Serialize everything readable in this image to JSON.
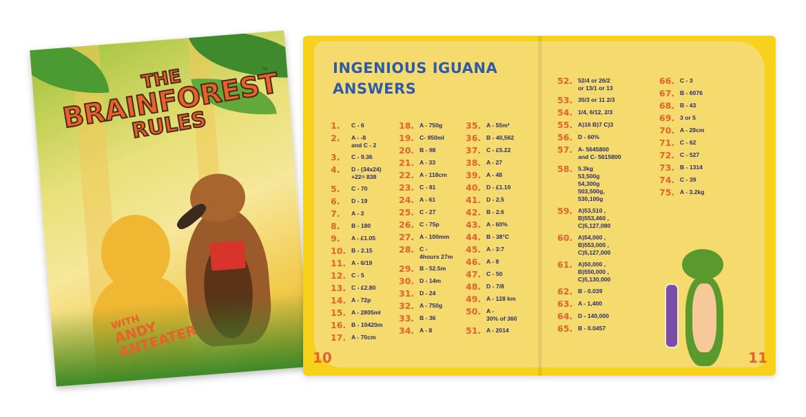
{
  "cover": {
    "title_line1": "THE",
    "title_line2": "BRAINFOREST",
    "title_line3": "RULES",
    "trademark": "™",
    "subtitle_line1": "WITH",
    "subtitle_line2": "ANDY",
    "subtitle_line3": "ANTEATER"
  },
  "spread": {
    "title_line1": "INGENIOUS IGUANA",
    "title_line2": "ANSWERS",
    "page_left": "10",
    "page_right": "11",
    "columns": [
      [
        [
          "1.",
          "C - 6"
        ],
        [
          "2.",
          "A - -8\nand C - 2"
        ],
        [
          "3.",
          "C - 9.36"
        ],
        [
          "4.",
          "D - (34x24)\n+22= 838"
        ],
        [
          "5.",
          "C - 70"
        ],
        [
          "6.",
          "D - 19"
        ],
        [
          "7.",
          "A - 3"
        ],
        [
          "8.",
          "B - 180"
        ],
        [
          "9.",
          "A - £1.05"
        ],
        [
          "10.",
          "B - 2.15"
        ],
        [
          "11.",
          "A - 6/19"
        ],
        [
          "12.",
          "C - 5"
        ],
        [
          "13.",
          "C - £2.80"
        ],
        [
          "14.",
          "A - 72p"
        ],
        [
          "15.",
          "A - 2805ml"
        ],
        [
          "16.",
          "B - 10420m"
        ],
        [
          "17.",
          "A - 70cm"
        ]
      ],
      [
        [
          "18.",
          "A - 750g"
        ],
        [
          "19.",
          "C- 950ml"
        ],
        [
          "20.",
          "B - 98"
        ],
        [
          "21.",
          "A - 33"
        ],
        [
          "22.",
          "A - 118cm"
        ],
        [
          "23.",
          "C - 81"
        ],
        [
          "24.",
          "A - 61"
        ],
        [
          "25.",
          "C - 27"
        ],
        [
          "26.",
          "C - 75p"
        ],
        [
          "27.",
          "A - 100mm"
        ],
        [
          "28.",
          "C -\n4hours 27m"
        ],
        [
          "29.",
          "B - 52.5m"
        ],
        [
          "30.",
          "D - 14m"
        ],
        [
          "31.",
          "D - 24"
        ],
        [
          "32.",
          "A - 750g"
        ],
        [
          "33.",
          "B - 36"
        ],
        [
          "34.",
          "A - 8"
        ]
      ],
      [
        [
          "35.",
          "A - 55m²"
        ],
        [
          "36.",
          "B - 40,562"
        ],
        [
          "37.",
          "C - £5.22"
        ],
        [
          "38.",
          "A - 27"
        ],
        [
          "39.",
          "A - 48"
        ],
        [
          "40.",
          "D - £1.10"
        ],
        [
          "41.",
          "D - 2.5"
        ],
        [
          "42.",
          "B - 2.6"
        ],
        [
          "43.",
          "A - 60%"
        ],
        [
          "44.",
          "B - 38°C"
        ],
        [
          "45.",
          "A - 3:7"
        ],
        [
          "46.",
          "A - 8"
        ],
        [
          "47.",
          "C - 50"
        ],
        [
          "48.",
          "D - 7/8"
        ],
        [
          "49.",
          "A - 128 km"
        ],
        [
          "50.",
          "A -\n30% of 360"
        ],
        [
          "51.",
          "A - 2014"
        ]
      ],
      [
        [
          "52.",
          "52/4 or 26/2\nor 13/1 or 13"
        ],
        [
          "53.",
          "35/3 or 11 2/3"
        ],
        [
          "54.",
          "1/4, 6/12, 2/3"
        ],
        [
          "55.",
          "A)16 B)7 C)3"
        ],
        [
          "56.",
          "D - 60%"
        ],
        [
          "57.",
          "A- 5645800\nand C- 5615800"
        ],
        [
          "58.",
          "5.3kg\n53,500g\n54,300g\n503,500g,\n530,100g"
        ],
        [
          "59.",
          "A)53,510 ,\nB)553,460 ,\nC)5,127,080"
        ],
        [
          "60.",
          "A)54,000 ,\nB)553,000 ,\nC)5,127,000"
        ],
        [
          "61.",
          "A)50,000 ,\nB)550,000 ,\nC)5,130,000"
        ],
        [
          "62.",
          "B - 0.039"
        ],
        [
          "63.",
          "A - 1,400"
        ],
        [
          "64.",
          "D - 140,000"
        ],
        [
          "65.",
          "B - 0.0457"
        ]
      ],
      [
        [
          "66.",
          "C - 3"
        ],
        [
          "67.",
          "B - 6076"
        ],
        [
          "68.",
          "B - 43"
        ],
        [
          "69.",
          "3 or 5"
        ],
        [
          "70.",
          "A - 28cm"
        ],
        [
          "71.",
          "C - 62"
        ],
        [
          "72.",
          "C - 527"
        ],
        [
          "73.",
          "B - 1314"
        ],
        [
          "74.",
          "C - 39"
        ],
        [
          "75.",
          "A - 3.2kg"
        ]
      ]
    ]
  },
  "colors": {
    "number": "#e8612c",
    "answer": "#2b2d6e",
    "title": "#2e5aa8",
    "page": "#f5da6d",
    "border": "#f7d11c"
  }
}
